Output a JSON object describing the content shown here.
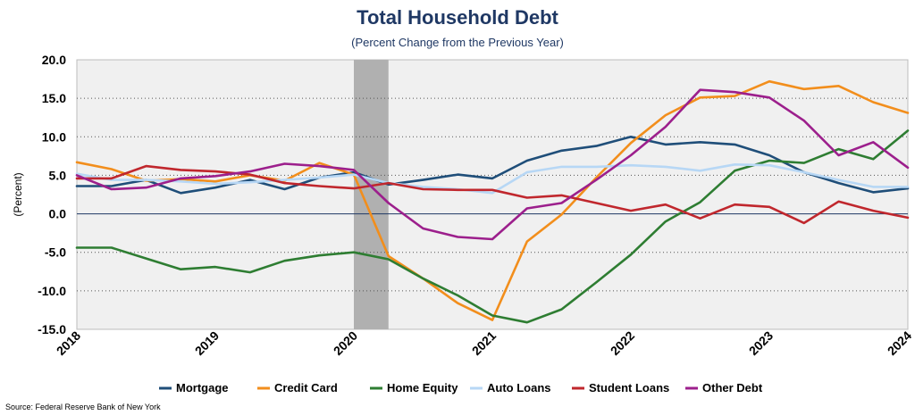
{
  "chart_data": {
    "type": "line",
    "title": "Total Household Debt",
    "subtitle": "(Percent Change from the Previous Year)",
    "ylabel": "(Percent)",
    "xlabel": "",
    "source": "Source: Federal Reserve Bank of New York",
    "ylim": [
      -15,
      20
    ],
    "yticks": [
      20,
      15,
      10,
      5,
      0,
      -5,
      -10,
      -15
    ],
    "ytick_labels": [
      "20.0",
      "15.0",
      "10.0",
      "5.0",
      "0.0",
      "-5.0",
      "-10.0",
      "-15.0"
    ],
    "xlim": [
      2018,
      2024
    ],
    "xticks": [
      2018,
      2019,
      2020,
      2021,
      2022,
      2023,
      2024
    ],
    "xtick_labels": [
      "2018",
      "2019",
      "2020",
      "2021",
      "2022",
      "2023",
      "2024"
    ],
    "grid": true,
    "legend_position": "bottom",
    "recession_shading": [
      2020.0,
      2020.25
    ],
    "colors": {
      "plot_background": "#f0f0f0",
      "recession": "#b0b0b0",
      "title": "#1f3864",
      "subtitle": "#1f3864",
      "grid": "#555555",
      "zero_line": "#1f3864"
    },
    "x": [
      2018.0,
      2018.25,
      2018.5,
      2018.75,
      2019.0,
      2019.25,
      2019.5,
      2019.75,
      2020.0,
      2020.25,
      2020.5,
      2020.75,
      2021.0,
      2021.25,
      2021.5,
      2021.75,
      2022.0,
      2022.25,
      2022.5,
      2022.75,
      2023.0,
      2023.25,
      2023.5,
      2023.75,
      2024.0
    ],
    "series": [
      {
        "name": "Mortgage",
        "color": "#1f4e79",
        "values": [
          3.6,
          3.6,
          4.4,
          2.7,
          3.4,
          4.4,
          3.2,
          4.7,
          5.4,
          3.8,
          4.4,
          5.1,
          4.6,
          6.9,
          8.2,
          8.8,
          10.0,
          9.0,
          9.3,
          9.0,
          7.6,
          5.4,
          4.0,
          2.8,
          3.3
        ]
      },
      {
        "name": "Credit Card",
        "color": "#f28e1c",
        "values": [
          6.7,
          5.8,
          4.3,
          4.5,
          4.2,
          5.0,
          4.3,
          6.6,
          5.1,
          -5.5,
          -8.4,
          -11.6,
          -13.8,
          -3.6,
          -0.1,
          4.7,
          9.2,
          12.8,
          15.1,
          15.3,
          17.2,
          16.2,
          16.6,
          14.5,
          13.1
        ]
      },
      {
        "name": "Home Equity",
        "color": "#2e7d32",
        "values": [
          -4.4,
          -4.4,
          -5.8,
          -7.2,
          -6.9,
          -7.6,
          -6.1,
          -5.4,
          -5.0,
          -5.9,
          -8.4,
          -10.6,
          -13.2,
          -14.1,
          -12.4,
          -8.9,
          -5.3,
          -1.0,
          1.5,
          5.6,
          6.9,
          6.6,
          8.4,
          7.1,
          10.8
        ]
      },
      {
        "name": "Auto Loans",
        "color": "#b7d7f5",
        "values": [
          5.2,
          4.4,
          4.4,
          4.2,
          3.9,
          4.1,
          4.4,
          4.7,
          5.1,
          4.0,
          3.5,
          3.2,
          2.7,
          5.4,
          6.1,
          6.1,
          6.3,
          6.1,
          5.6,
          6.4,
          6.3,
          5.4,
          4.4,
          3.5,
          3.5
        ]
      },
      {
        "name": "Student Loans",
        "color": "#c0272d",
        "values": [
          4.6,
          4.6,
          6.2,
          5.7,
          5.5,
          5.1,
          4.0,
          3.6,
          3.3,
          4.0,
          3.2,
          3.1,
          3.1,
          2.1,
          2.4,
          1.4,
          0.4,
          1.2,
          -0.6,
          1.2,
          0.9,
          -1.2,
          1.6,
          0.4,
          -0.5
        ]
      },
      {
        "name": "Other Debt",
        "color": "#9c1f8c",
        "values": [
          5.0,
          3.2,
          3.4,
          4.6,
          4.9,
          5.5,
          6.5,
          6.2,
          5.7,
          1.4,
          -1.9,
          -3.0,
          -3.3,
          0.7,
          1.4,
          4.4,
          7.6,
          11.3,
          16.1,
          15.8,
          15.1,
          12.1,
          7.6,
          9.3,
          6.0
        ]
      }
    ]
  }
}
